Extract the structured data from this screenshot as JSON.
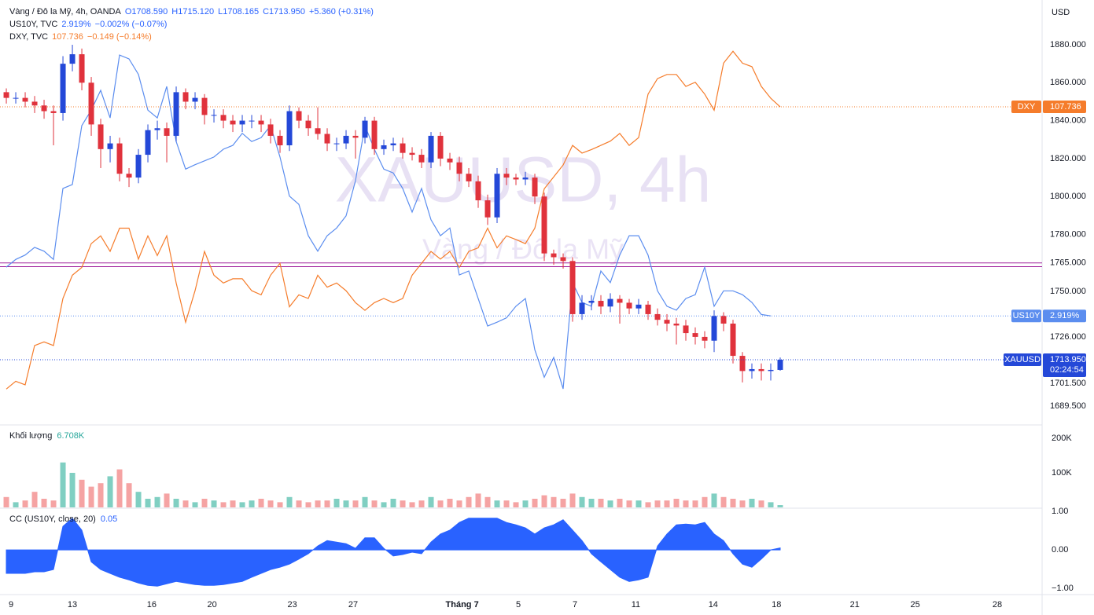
{
  "chart_data": {
    "type": "candlestick",
    "title": "XAUUSD, 4h",
    "subtitle": "Vàng / Đô la Mỹ",
    "y_label": "USD",
    "legend": [
      {
        "name": "Vàng / Đô la Mỹ, 4h, OANDA",
        "color": "#2962ff",
        "items": [
          "O1708.590",
          "H1715.120",
          "L1708.165",
          "C1713.950",
          "+5.360 (+0.31%)"
        ]
      },
      {
        "name": "US10Y, TVC",
        "color": "#2962ff",
        "items": [
          "2.919%",
          "−0.002% (−0.07%)"
        ]
      },
      {
        "name": "DXY, TVC",
        "color": "#f57c2b",
        "items": [
          "107.736",
          "−0.149 (−0.14%)"
        ]
      }
    ],
    "xlim": [
      -0.67,
      109.75
    ],
    "xticks": [
      {
        "value": 0.5,
        "label": "9"
      },
      {
        "value": 7,
        "label": "13"
      },
      {
        "value": 15.4,
        "label": "16"
      },
      {
        "value": 21.8,
        "label": "20"
      },
      {
        "value": 30.3,
        "label": "23"
      },
      {
        "value": 36.75,
        "label": "27"
      },
      {
        "value": 48.3,
        "label": "Tháng 7"
      },
      {
        "value": 54.25,
        "label": "5"
      },
      {
        "value": 60.25,
        "label": "7"
      },
      {
        "value": 66.7,
        "label": "11"
      },
      {
        "value": 74.9,
        "label": "14"
      },
      {
        "value": 81.6,
        "label": "18"
      },
      {
        "value": 89.9,
        "label": "21"
      },
      {
        "value": 96.3,
        "label": "25"
      },
      {
        "value": 105,
        "label": "28"
      }
    ],
    "ylim": [
      1680,
      1903.6
    ],
    "yticks": [
      {
        "value": 1880,
        "label": "1880.000"
      },
      {
        "value": 1860,
        "label": "1860.000"
      },
      {
        "value": 1840,
        "label": "1840.000"
      },
      {
        "value": 1820,
        "label": "1820.000"
      },
      {
        "value": 1800,
        "label": "1800.000"
      },
      {
        "value": 1780,
        "label": "1780.000"
      },
      {
        "value": 1765,
        "label": "1765.000"
      },
      {
        "value": 1750,
        "label": "1750.000"
      },
      {
        "value": 1726,
        "label": "1726.000"
      },
      {
        "value": 1701.5,
        "label": "1701.500"
      },
      {
        "value": 1689.5,
        "label": "1689.500"
      }
    ],
    "up_color": "#2448d8",
    "down_color": "#e0323c",
    "open": [
      1855,
      1852,
      1852,
      1850,
      1848,
      1845,
      1844,
      1870,
      1875,
      1860,
      1838,
      1825,
      1828,
      1812,
      1810,
      1822,
      1835,
      1836,
      1832,
      1855,
      1850,
      1852,
      1843,
      1843,
      1840,
      1838,
      1840,
      1840,
      1838,
      1832,
      1827,
      1845,
      1840,
      1836,
      1833,
      1828,
      1828,
      1832,
      1831,
      1840,
      1825,
      1827,
      1828,
      1823,
      1822,
      1818,
      1832,
      1820,
      1818,
      1812,
      1808,
      1798,
      1789,
      1812,
      1810,
      1809,
      1810,
      1800,
      1770,
      1768,
      1766,
      1738,
      1744,
      1745,
      1742,
      1746,
      1744,
      1741,
      1743,
      1738,
      1735,
      1733,
      1732,
      1728,
      1726,
      1724,
      1737,
      1733,
      1716,
      1708,
      1709,
      1708,
      1708.59
    ],
    "high": [
      1857,
      1855,
      1855,
      1853,
      1851,
      1848,
      1874,
      1880,
      1878,
      1863,
      1841,
      1832,
      1831,
      1815,
      1825,
      1838,
      1840,
      1839,
      1858,
      1857,
      1855,
      1854,
      1846,
      1846,
      1843,
      1843,
      1843,
      1843,
      1841,
      1835,
      1848,
      1847,
      1843,
      1847,
      1836,
      1831,
      1835,
      1835,
      1842,
      1842,
      1830,
      1831,
      1831,
      1826,
      1825,
      1834,
      1834,
      1823,
      1821,
      1815,
      1811,
      1801,
      1815,
      1815,
      1812,
      1813,
      1812,
      1802,
      1772,
      1770,
      1768,
      1748,
      1748,
      1748,
      1749,
      1748,
      1746,
      1746,
      1745,
      1741,
      1738,
      1736,
      1735,
      1731,
      1729,
      1740,
      1739,
      1735,
      1718,
      1712,
      1712,
      1712,
      1715.12
    ],
    "low": [
      1849,
      1849,
      1847,
      1844,
      1841,
      1827,
      1840,
      1866,
      1856,
      1832,
      1815,
      1818,
      1808,
      1805,
      1807,
      1818,
      1830,
      1818,
      1829,
      1846,
      1846,
      1838,
      1839,
      1836,
      1834,
      1834,
      1836,
      1834,
      1828,
      1823,
      1824,
      1836,
      1832,
      1830,
      1824,
      1824,
      1825,
      1820,
      1828,
      1822,
      1822,
      1824,
      1820,
      1819,
      1815,
      1815,
      1816,
      1814,
      1808,
      1805,
      1794,
      1785,
      1786,
      1806,
      1806,
      1806,
      1796,
      1766,
      1764,
      1762,
      1734,
      1735,
      1740,
      1738,
      1739,
      1733,
      1738,
      1738,
      1735,
      1732,
      1729,
      1722,
      1724,
      1722,
      1720,
      1718,
      1729,
      1712,
      1702,
      1704,
      1703,
      1703,
      1708.165
    ],
    "close": [
      1852,
      1852,
      1850,
      1848,
      1845,
      1844,
      1870,
      1875,
      1860,
      1838,
      1825,
      1828,
      1812,
      1810,
      1822,
      1835,
      1836,
      1832,
      1855,
      1850,
      1852,
      1843,
      1843,
      1840,
      1838,
      1840,
      1840,
      1838,
      1832,
      1827,
      1845,
      1840,
      1836,
      1833,
      1828,
      1828,
      1832,
      1831,
      1840,
      1825,
      1827,
      1828,
      1823,
      1822,
      1818,
      1832,
      1820,
      1818,
      1812,
      1808,
      1798,
      1789,
      1812,
      1810,
      1809,
      1810,
      1800,
      1770,
      1768,
      1766,
      1738,
      1744,
      1745,
      1742,
      1746,
      1744,
      1741,
      1743,
      1738,
      1735,
      1733,
      1732,
      1728,
      1726,
      1724,
      1737,
      1733,
      1716,
      1708,
      1709,
      1708,
      1708.59,
      1713.95
    ],
    "price_name": "XAUUSD",
    "price_label": "1713.950",
    "countdown": "02:24:54",
    "hlines": [
      1765,
      1763
    ],
    "hline_color": "#a0209c",
    "overlays": [
      {
        "name": "US10Y",
        "color": "#5b8def",
        "last_label": "2.919%",
        "ylim": [
          2.695,
          3.573
        ],
        "values": [
          3.02,
          3.036,
          3.045,
          3.061,
          3.053,
          3.036,
          3.183,
          3.191,
          3.313,
          3.345,
          3.386,
          3.329,
          3.459,
          3.451,
          3.419,
          3.345,
          3.329,
          3.394,
          3.28,
          3.223,
          3.232,
          3.24,
          3.248,
          3.264,
          3.272,
          3.297,
          3.28,
          3.288,
          3.313,
          3.248,
          3.167,
          3.15,
          3.085,
          3.053,
          3.085,
          3.101,
          3.126,
          3.199,
          3.313,
          3.264,
          3.223,
          3.215,
          3.183,
          3.134,
          3.183,
          3.118,
          3.085,
          3.101,
          3.004,
          3.012,
          2.955,
          2.898,
          2.906,
          2.915,
          2.939,
          2.955,
          2.849,
          2.792,
          2.833,
          2.768,
          2.988,
          2.947,
          2.939,
          3.012,
          2.988,
          3.045,
          3.085,
          3.085,
          3.045,
          2.971,
          2.939,
          2.931,
          2.955,
          2.963,
          3.02,
          2.939,
          2.971,
          2.971,
          2.963,
          2.947,
          2.922,
          2.919,
          null
        ]
      },
      {
        "name": "DXY",
        "color": "#f57c2b",
        "last_label": "107.736",
        "ylim": [
          102.41,
          109.53
        ],
        "values": [
          103.0,
          103.13,
          103.07,
          103.73,
          103.79,
          103.73,
          104.52,
          104.91,
          105.04,
          105.44,
          105.57,
          105.31,
          105.7,
          105.7,
          105.18,
          105.57,
          105.24,
          105.57,
          104.78,
          104.12,
          104.65,
          105.31,
          104.91,
          104.78,
          104.85,
          104.85,
          104.65,
          104.58,
          104.91,
          105.11,
          104.38,
          104.58,
          104.52,
          104.91,
          104.71,
          104.78,
          104.65,
          104.45,
          104.32,
          104.45,
          104.52,
          104.45,
          104.52,
          104.91,
          105.11,
          105.31,
          105.18,
          105.31,
          105.04,
          105.31,
          105.37,
          105.7,
          105.37,
          105.57,
          105.51,
          105.44,
          105.7,
          106.36,
          106.56,
          106.76,
          107.09,
          106.96,
          107.02,
          107.09,
          107.16,
          107.29,
          107.09,
          107.22,
          107.95,
          108.21,
          108.28,
          108.28,
          108.08,
          108.15,
          107.95,
          107.68,
          108.47,
          108.67,
          108.47,
          108.41,
          108.08,
          107.88,
          107.736
        ]
      }
    ],
    "volume": {
      "title": "Khối lượng",
      "last_label": "6.708K",
      "up_color": "#80cfc2",
      "down_color": "#f5a3a3",
      "ylim": [
        0,
        229500
      ],
      "yticks": [
        {
          "value": 200000,
          "label": "200K"
        },
        {
          "value": 100000,
          "label": "100K"
        }
      ],
      "values": [
        30000,
        15000,
        20000,
        45000,
        25000,
        20000,
        130000,
        100000,
        80000,
        60000,
        70000,
        90000,
        110000,
        70000,
        45000,
        25000,
        30000,
        40000,
        25000,
        20000,
        15000,
        25000,
        20000,
        15000,
        20000,
        15000,
        20000,
        25000,
        20000,
        15000,
        30000,
        20000,
        15000,
        20000,
        20000,
        25000,
        20000,
        20000,
        30000,
        20000,
        15000,
        25000,
        20000,
        15000,
        20000,
        30000,
        20000,
        25000,
        20000,
        30000,
        40000,
        30000,
        20000,
        20000,
        15000,
        20000,
        25000,
        35000,
        30000,
        25000,
        40000,
        30000,
        25000,
        25000,
        20000,
        25000,
        20000,
        20000,
        15000,
        20000,
        20000,
        25000,
        20000,
        20000,
        30000,
        40000,
        30000,
        25000,
        20000,
        25000,
        20000,
        15000,
        6708
      ]
    },
    "cc": {
      "title": "CC (US10Y, close, 20)",
      "color": "#2962ff",
      "ylim": [
        -1.16,
        1.02
      ],
      "yticks": [
        {
          "value": 1,
          "label": "1.00"
        },
        {
          "value": 0,
          "label": "0.00"
        },
        {
          "value": -1,
          "label": "−1.00"
        }
      ],
      "values": [
        -0.61,
        -0.61,
        -0.61,
        -0.57,
        -0.57,
        -0.51,
        0.61,
        0.82,
        0.51,
        -0.31,
        -0.51,
        -0.61,
        -0.71,
        -0.78,
        -0.86,
        -0.92,
        -0.94,
        -0.88,
        -0.82,
        -0.86,
        -0.9,
        -0.92,
        -0.92,
        -0.9,
        -0.86,
        -0.82,
        -0.71,
        -0.61,
        -0.51,
        -0.45,
        -0.37,
        -0.24,
        -0.1,
        0.1,
        0.24,
        0.2,
        0.16,
        0.04,
        0.31,
        0.31,
        0.04,
        -0.16,
        -0.12,
        -0.06,
        -0.1,
        0.2,
        0.41,
        0.51,
        0.71,
        0.82,
        0.82,
        0.82,
        0.82,
        0.71,
        0.65,
        0.57,
        0.41,
        0.57,
        0.65,
        0.78,
        0.51,
        0.24,
        -0.1,
        -0.31,
        -0.51,
        -0.71,
        -0.82,
        -0.78,
        -0.71,
        0.1,
        0.41,
        0.65,
        0.67,
        0.65,
        0.71,
        0.41,
        0.24,
        -0.1,
        -0.37,
        -0.45,
        -0.24,
        0.0,
        0.05
      ]
    }
  }
}
